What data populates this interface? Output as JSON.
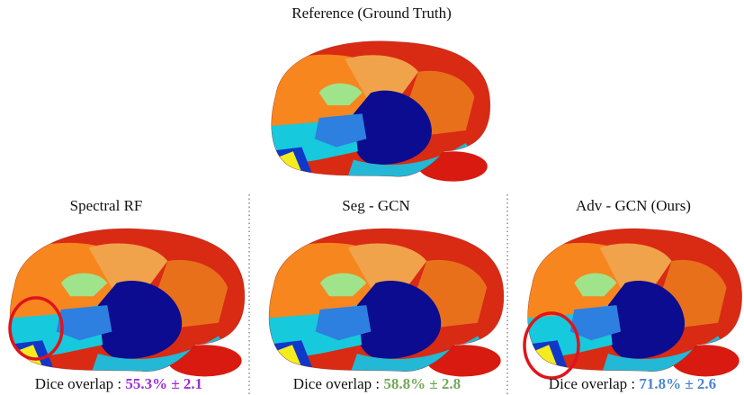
{
  "figure": {
    "reference": {
      "title": "Reference (Ground Truth)"
    },
    "panels": [
      {
        "title": "Spectral RF",
        "metric_label": "Dice overlap :",
        "metric_value": "55.3% ± 2.1"
      },
      {
        "title": "Seg - GCN",
        "metric_label": "Dice overlap :",
        "metric_value": "58.8% ± 2.8"
      },
      {
        "title": "Adv - GCN  (Ours)",
        "metric_label": "Dice overlap :",
        "metric_value": "71.8% ± 2.6"
      }
    ]
  }
}
